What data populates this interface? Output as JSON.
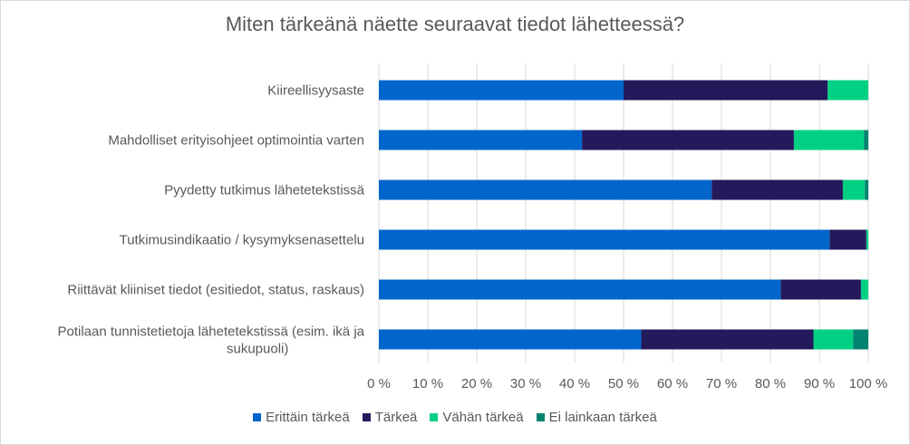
{
  "chart_data": {
    "type": "bar",
    "orientation": "horizontal",
    "stacked": "percent",
    "title": "Miten tärkeänä näette seuraavat tiedot lähetteessä?",
    "categories": [
      "Kiireellisyysaste",
      "Mahdolliset erityisohjeet optimointia varten",
      "Pyydetty tutkimus lähetetekstissä",
      "Tutkimusindikaatio / kysymyksenasettelu",
      "Riittävät kliiniset tiedot (esitiedot, status, raskaus)",
      "Potilaan tunnistetietoja lähetetekstissä (esim. ikä ja sukupuoli)"
    ],
    "series": [
      {
        "name": "Erittäin tärkeä",
        "color": "#0066CC",
        "values": [
          50.0,
          41.5,
          68.0,
          92.1,
          82.1,
          53.6
        ]
      },
      {
        "name": "Tärkeä",
        "color": "#231A5C",
        "values": [
          41.7,
          43.3,
          26.8,
          7.5,
          16.4,
          35.2
        ]
      },
      {
        "name": "Vähän tärkeä",
        "color": "#00D084",
        "values": [
          8.3,
          14.3,
          4.5,
          0.4,
          1.5,
          8.1
        ]
      },
      {
        "name": "Ei lainkaan tärkeä",
        "color": "#00836F",
        "values": [
          0.0,
          0.9,
          0.7,
          0.0,
          0.0,
          3.1
        ]
      }
    ],
    "xlim": [
      0,
      100
    ],
    "xticks": [
      "0 %",
      "10 %",
      "20 %",
      "30 %",
      "40 %",
      "50 %",
      "60 %",
      "70 %",
      "80 %",
      "90 %",
      "100 %"
    ],
    "grid": "vertical",
    "legend": "bottom"
  }
}
